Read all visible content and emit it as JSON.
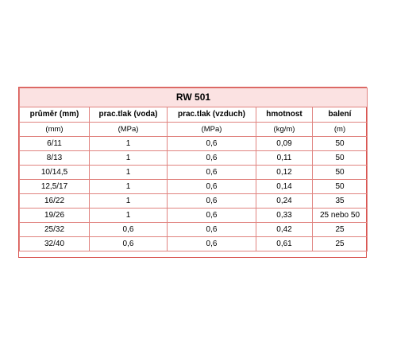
{
  "table": {
    "title": "RW 501",
    "headers": [
      "průměr (mm)",
      "prac.tlak (voda)",
      "prac.tlak (vzduch)",
      "hmotnost",
      "balení"
    ],
    "units": [
      "(mm)",
      "(MPa)",
      "(MPa)",
      "(kg/m)",
      "(m)"
    ],
    "rows": [
      [
        "6/11",
        "1",
        "0,6",
        "0,09",
        "50"
      ],
      [
        "8/13",
        "1",
        "0,6",
        "0,11",
        "50"
      ],
      [
        "10/14,5",
        "1",
        "0,6",
        "0,12",
        "50"
      ],
      [
        "12,5/17",
        "1",
        "0,6",
        "0,14",
        "50"
      ],
      [
        "16/22",
        "1",
        "0,6",
        "0,24",
        "35"
      ],
      [
        "19/26",
        "1",
        "0,6",
        "0,33",
        "25 nebo 50"
      ],
      [
        "25/32",
        "0,6",
        "0,6",
        "0,42",
        "25"
      ],
      [
        "32/40",
        "0,6",
        "0,6",
        "0,61",
        "25"
      ]
    ],
    "colors": {
      "border": "#e0837f",
      "title_background": "#fbe2e2"
    }
  }
}
